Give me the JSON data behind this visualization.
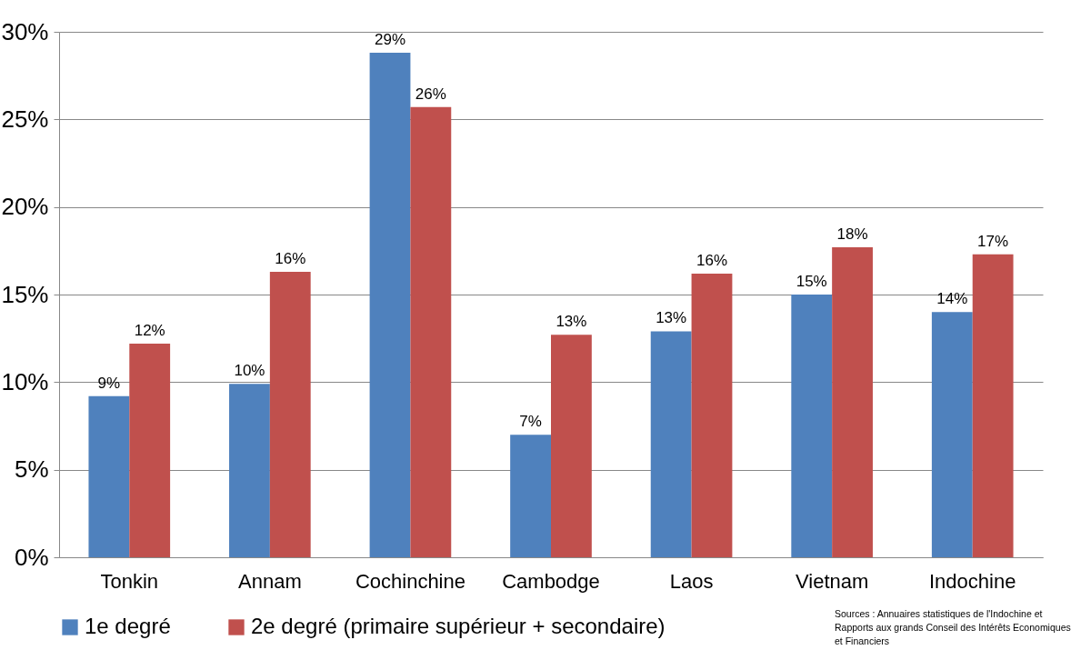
{
  "chart_data": {
    "type": "bar",
    "categories": [
      "Tonkin",
      "Annam",
      "Cochinchine",
      "Cambodge",
      "Laos",
      "Vietnam",
      "Indochine"
    ],
    "series": [
      {
        "name": "1e degré",
        "color": "#4f81bd",
        "values": [
          9.2,
          9.9,
          28.8,
          7.0,
          12.9,
          15.0,
          14.0
        ],
        "value_labels": [
          "9%",
          "10%",
          "29%",
          "7%",
          "13%",
          "15%",
          "14%"
        ]
      },
      {
        "name": "2e degré (primaire supérieur + secondaire)",
        "color": "#c0504d",
        "values": [
          12.2,
          16.3,
          25.7,
          12.7,
          16.2,
          17.7,
          17.3
        ],
        "value_labels": [
          "12%",
          "16%",
          "26%",
          "13%",
          "16%",
          "18%",
          "17%"
        ]
      }
    ],
    "ylim": [
      0,
      30
    ],
    "yticks": [
      {
        "value": 0,
        "label": "0%"
      },
      {
        "value": 5,
        "label": "5%"
      },
      {
        "value": 10,
        "label": "10%"
      },
      {
        "value": 15,
        "label": "15%"
      },
      {
        "value": 20,
        "label": "20%"
      },
      {
        "value": 25,
        "label": "25%"
      },
      {
        "value": 30,
        "label": "30%"
      }
    ],
    "grid": "y",
    "legend": "bottom",
    "annotations": [
      "Sources : Annuaires statistiques  de l'Indochine et Rapports aux grands Conseil des Intérêts Economiques et Financiers"
    ]
  }
}
